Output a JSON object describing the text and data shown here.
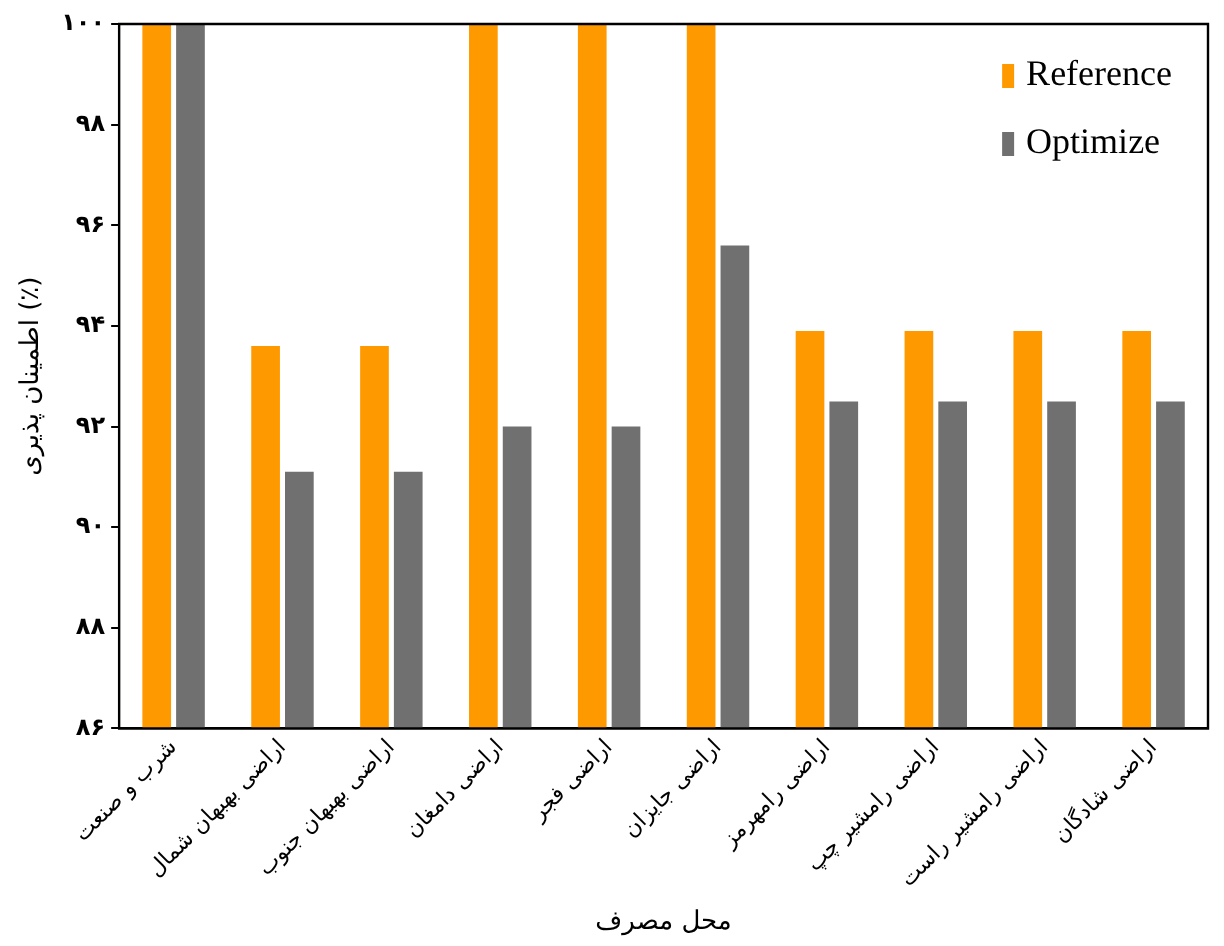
{
  "chart_data": {
    "type": "bar",
    "xlabel": "محل مصرف",
    "ylabel": "اطمینان پذیری (٪)",
    "categories": [
      "شرب و صنعت",
      "اراضی بهبهان شمال",
      "اراضی بهبهان جنوب",
      "اراضی دامغان",
      "اراضی فجر",
      "اراضی جایزان",
      "اراضی رامهرمز",
      "اراضی رامشیر چپ",
      "اراضی رامشیر راست",
      "اراضی شادگان"
    ],
    "series": [
      {
        "name": "Reference",
        "color": "#ff9900",
        "values": [
          100,
          93.6,
          93.6,
          100,
          100,
          100,
          93.9,
          93.9,
          93.9,
          93.9
        ]
      },
      {
        "name": "Optimize",
        "color": "#707070",
        "values": [
          100,
          91.1,
          91.1,
          92.0,
          92.0,
          95.6,
          92.5,
          92.5,
          92.5,
          92.5
        ]
      }
    ],
    "ylim": [
      86,
      100
    ],
    "yticks": [
      {
        "value": 86,
        "label": "۸۶"
      },
      {
        "value": 88,
        "label": "۸۸"
      },
      {
        "value": 90,
        "label": "۹۰"
      },
      {
        "value": 92,
        "label": "۹۲"
      },
      {
        "value": 94,
        "label": "۹۴"
      },
      {
        "value": 96,
        "label": "۹۶"
      },
      {
        "value": 98,
        "label": "۹۸"
      },
      {
        "value": 100,
        "label": "۱۰۰"
      }
    ],
    "grid": false,
    "legend": "top right"
  }
}
